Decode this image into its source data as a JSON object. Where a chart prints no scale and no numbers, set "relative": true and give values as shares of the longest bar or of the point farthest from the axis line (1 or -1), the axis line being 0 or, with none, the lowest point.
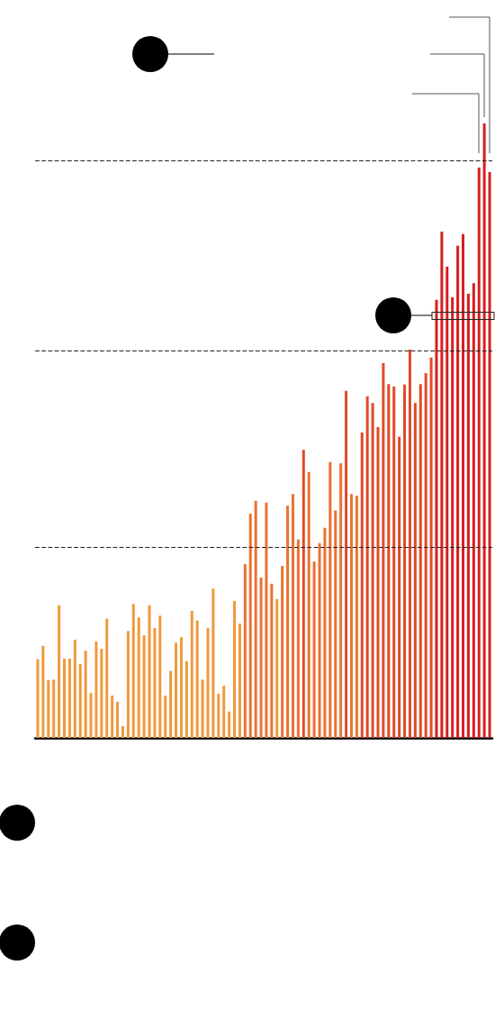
{
  "chart_data": {
    "type": "bar",
    "relative": true,
    "categories": [
      null,
      null,
      null,
      null,
      null,
      null,
      null,
      null,
      null,
      null,
      null,
      null,
      null,
      null,
      null,
      null,
      null,
      null,
      null,
      null,
      null,
      null,
      null,
      null,
      null,
      null,
      null,
      null,
      null,
      null,
      null,
      null,
      null,
      null,
      null,
      null,
      null,
      null,
      null,
      null,
      null,
      null,
      null,
      null,
      null,
      null,
      null,
      null,
      null,
      null,
      null,
      null,
      null,
      null,
      null,
      null,
      null,
      null,
      null,
      null,
      null,
      null,
      null,
      null,
      null,
      null,
      null,
      null,
      null,
      null,
      null,
      null,
      null,
      null,
      null,
      null,
      null,
      null,
      null,
      null,
      null,
      null,
      null,
      null,
      null,
      null
    ],
    "values": [
      0.128,
      0.15,
      0.094,
      0.095,
      0.216,
      0.129,
      0.129,
      0.16,
      0.12,
      0.142,
      0.073,
      0.157,
      0.145,
      0.194,
      0.069,
      0.059,
      0.019,
      0.174,
      0.218,
      0.196,
      0.167,
      0.216,
      0.179,
      0.199,
      0.069,
      0.109,
      0.155,
      0.164,
      0.125,
      0.207,
      0.191,
      0.095,
      0.179,
      0.243,
      0.072,
      0.085,
      0.043,
      0.223,
      0.186,
      0.283,
      0.365,
      0.386,
      0.261,
      0.383,
      0.251,
      0.226,
      0.28,
      0.378,
      0.397,
      0.323,
      0.469,
      0.433,
      0.287,
      0.317,
      0.342,
      0.449,
      0.37,
      0.447,
      0.565,
      0.397,
      0.394,
      0.497,
      0.556,
      0.545,
      0.506,
      0.61,
      0.576,
      0.572,
      0.49,
      0.575,
      0.632,
      0.545,
      0.576,
      0.594,
      0.619,
      0.713,
      0.824,
      0.767,
      0.717,
      0.801,
      0.82,
      0.723,
      0.74,
      0.928,
      1,
      0.921
    ],
    "colors": [
      "#f0993d",
      "#f0993d",
      "#f0993d",
      "#f0993d",
      "#f0993d",
      "#f0993d",
      "#f0993d",
      "#f0993d",
      "#f0993d",
      "#f0993d",
      "#f0993d",
      "#f0993d",
      "#f0993d",
      "#f0993d",
      "#f0993d",
      "#f0993d",
      "#f0993d",
      "#f0993d",
      "#f0993d",
      "#f0993d",
      "#f0993d",
      "#f0993d",
      "#f0993d",
      "#f0993d",
      "#f0993d",
      "#f0993d",
      "#f0993d",
      "#f0993d",
      "#f0993d",
      "#f0993d",
      "#f0993d",
      "#f0993d",
      "#f0993d",
      "#f0993d",
      "#f0993d",
      "#f0993d",
      "#f0993d",
      "#f0993d",
      "#f0993d",
      "#eb7232",
      "#eb7232",
      "#eb7232",
      "#eb7232",
      "#eb7232",
      "#eb7232",
      "#f0993d",
      "#eb7232",
      "#eb7232",
      "#eb7232",
      "#eb7232",
      "#e04a28",
      "#eb7232",
      "#eb7232",
      "#eb7232",
      "#eb7232",
      "#eb7232",
      "#eb7232",
      "#eb7232",
      "#e04a28",
      "#eb7232",
      "#eb7232",
      "#e04a28",
      "#e04a28",
      "#e04a28",
      "#e04a28",
      "#e04a28",
      "#e04a28",
      "#e04a28",
      "#e04a28",
      "#e04a28",
      "#e04a28",
      "#e04a28",
      "#e04a28",
      "#e04a28",
      "#e04a28",
      "#d61f1f",
      "#d61f1f",
      "#d61f1f",
      "#d61f1f",
      "#d61f1f",
      "#d61f1f",
      "#d61f1f",
      "#d61f1f",
      "#d61f1f",
      "#d61f1f",
      "#d61f1f"
    ],
    "ref_lines": [
      {
        "axis": "y",
        "value": 0.313,
        "color": "#222222",
        "line_style": "dashed"
      },
      {
        "axis": "y",
        "value": 0.626,
        "color": "#222222",
        "line_style": "dashed"
      },
      {
        "axis": "y",
        "value": 0.939,
        "color": "#222222",
        "line_style": "dashed"
      }
    ],
    "grid": false
  }
}
